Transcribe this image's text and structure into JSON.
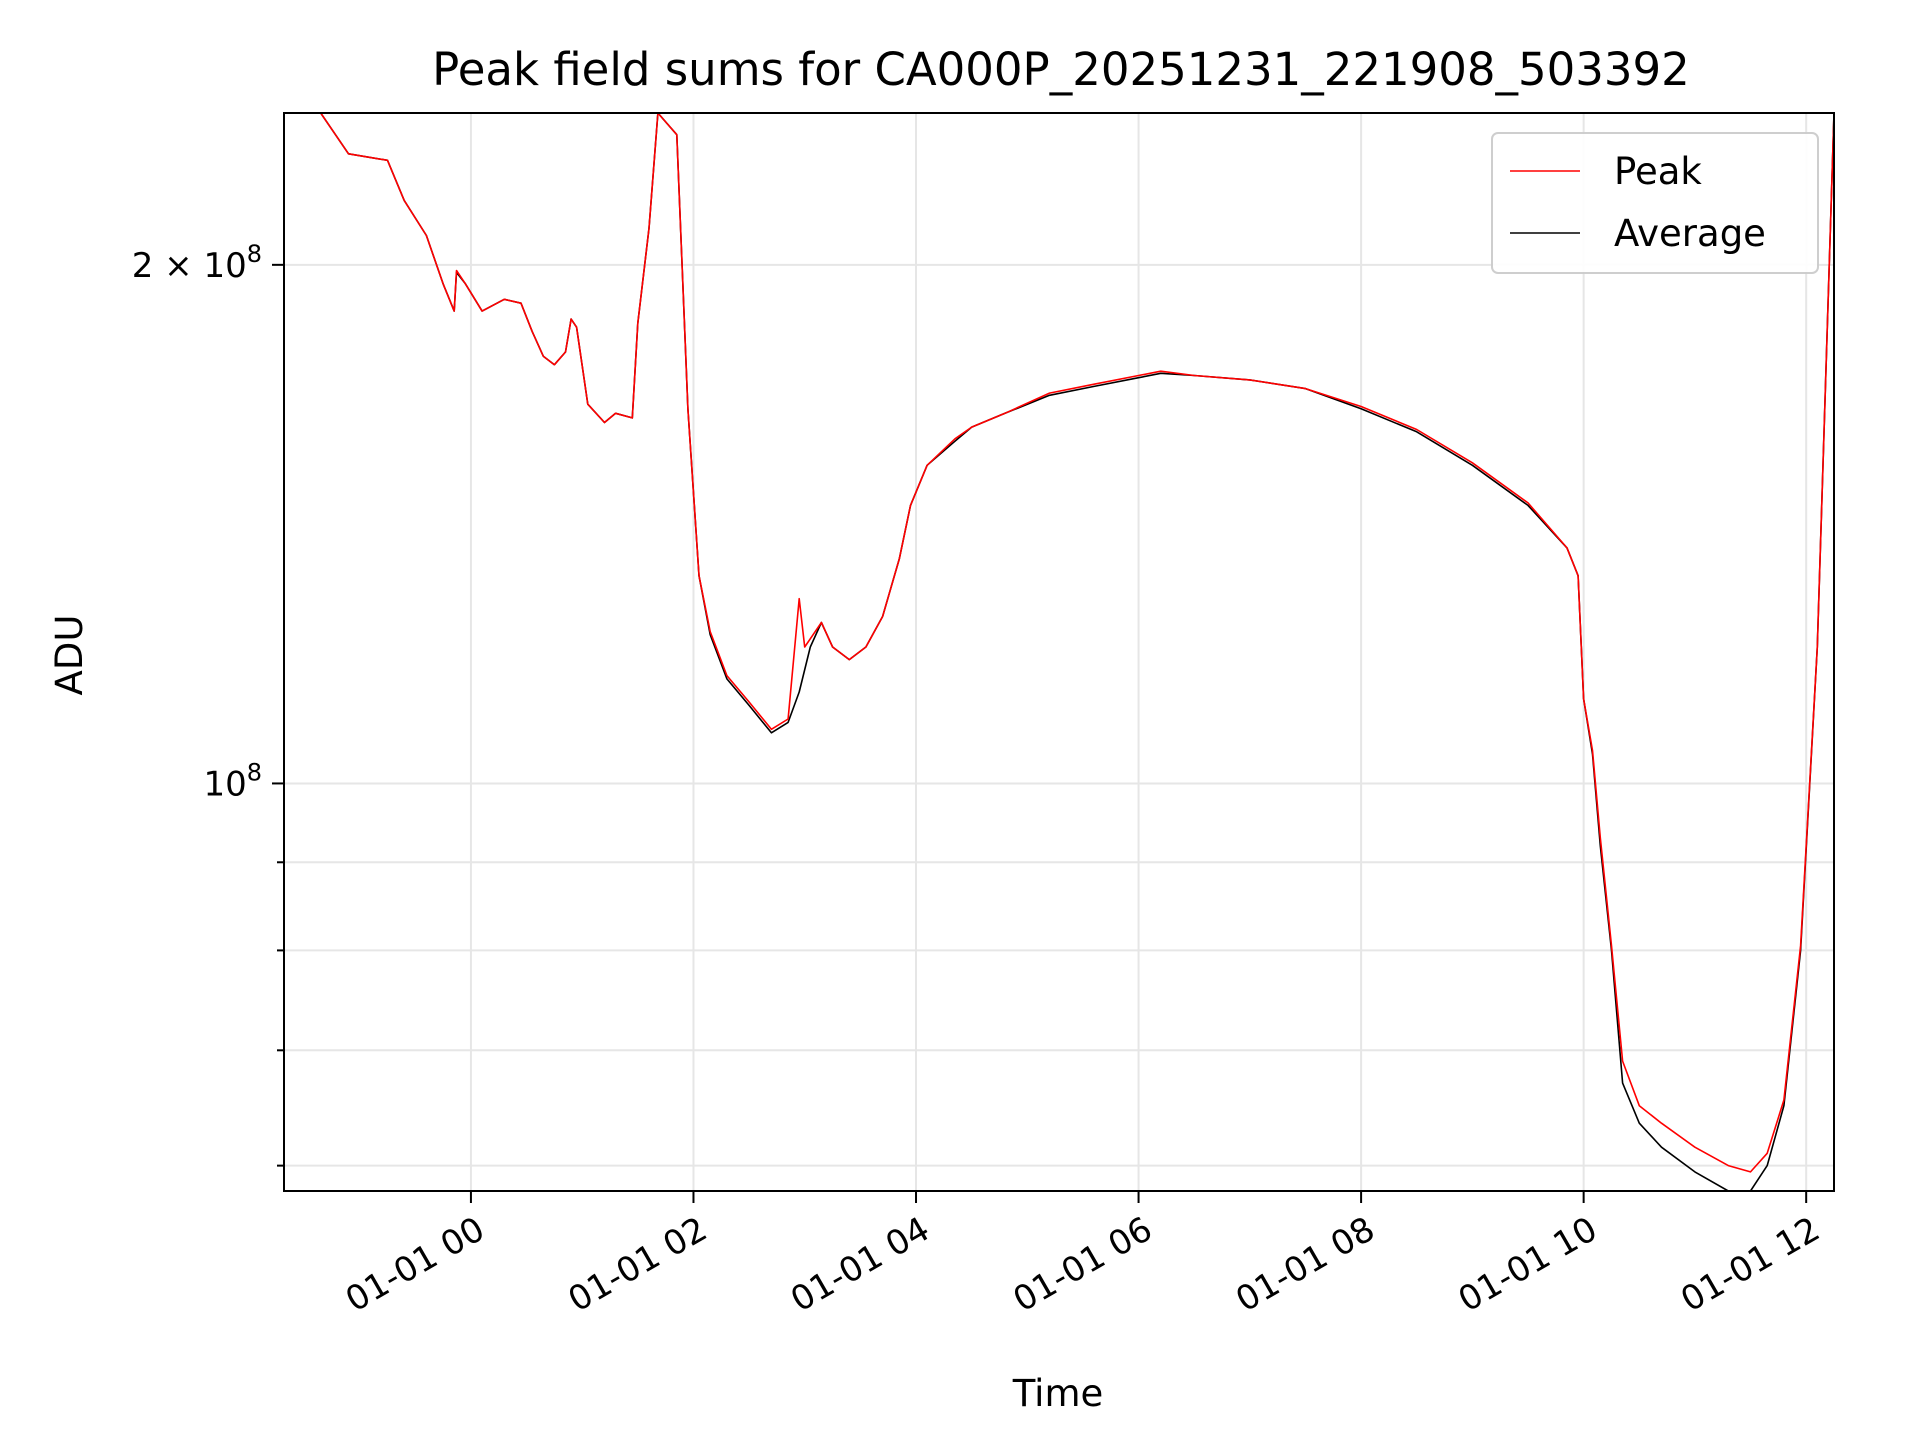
{
  "chart_data": {
    "type": "line",
    "title": "Peak field sums for CA000P_20251231_221908_503392",
    "xlabel": "Time",
    "ylabel": "ADU",
    "x_axis": {
      "unit": "hours since 2026-01-01 00:00",
      "range": [
        -1.68,
        12.25
      ],
      "ticks": [
        {
          "value": 0,
          "label": "01-01 00"
        },
        {
          "value": 2,
          "label": "01-01 02"
        },
        {
          "value": 4,
          "label": "01-01 04"
        },
        {
          "value": 6,
          "label": "01-01 06"
        },
        {
          "value": 8,
          "label": "01-01 08"
        },
        {
          "value": 10,
          "label": "01-01 10"
        },
        {
          "value": 12,
          "label": "01-01 12"
        }
      ]
    },
    "y_axis": {
      "scale": "log",
      "range": [
        58000000,
        245000000
      ],
      "major_ticks": [
        {
          "value": 100000000,
          "base": "10",
          "exp": "8",
          "mantissa": ""
        },
        {
          "value": 200000000,
          "base": "10",
          "exp": "8",
          "mantissa": "2 × "
        }
      ],
      "minor_gridlines": [
        60000000,
        70000000,
        80000000,
        90000000
      ]
    },
    "grid": true,
    "legend": {
      "placement": "upper right",
      "entries": [
        {
          "label": "Peak",
          "color": "#ff0000"
        },
        {
          "label": "Average",
          "color": "#000000"
        }
      ]
    },
    "series": [
      {
        "name": "Average",
        "color": "#000000",
        "points": [
          [
            -1.68,
            245000000
          ],
          [
            -1.35,
            245000000
          ],
          [
            -1.1,
            232000000
          ],
          [
            -0.75,
            230000000
          ],
          [
            -0.6,
            218000000
          ],
          [
            -0.4,
            208000000
          ],
          [
            -0.25,
            195000000
          ],
          [
            -0.15,
            188000000
          ],
          [
            -0.13,
            198000000
          ],
          [
            -0.05,
            195000000
          ],
          [
            0.1,
            188000000
          ],
          [
            0.3,
            191000000
          ],
          [
            0.45,
            190000000
          ],
          [
            0.55,
            183000000
          ],
          [
            0.65,
            177000000
          ],
          [
            0.75,
            175000000
          ],
          [
            0.85,
            178000000
          ],
          [
            0.9,
            186000000
          ],
          [
            0.95,
            184000000
          ],
          [
            1.05,
            166000000
          ],
          [
            1.2,
            162000000
          ],
          [
            1.3,
            164000000
          ],
          [
            1.45,
            163000000
          ],
          [
            1.5,
            185000000
          ],
          [
            1.6,
            210000000
          ],
          [
            1.68,
            245000000
          ],
          [
            1.85,
            238000000
          ],
          [
            1.95,
            165000000
          ],
          [
            2.05,
            132000000
          ],
          [
            2.15,
            122000000
          ],
          [
            2.3,
            115000000
          ],
          [
            2.5,
            111000000
          ],
          [
            2.7,
            107000000
          ],
          [
            2.85,
            108500000
          ],
          [
            2.95,
            113000000
          ],
          [
            3.05,
            120000000
          ],
          [
            3.15,
            124000000
          ],
          [
            3.25,
            120000000
          ],
          [
            3.4,
            118000000
          ],
          [
            3.55,
            120000000
          ],
          [
            3.7,
            125000000
          ],
          [
            3.85,
            135000000
          ],
          [
            3.95,
            145000000
          ],
          [
            4.1,
            153000000
          ],
          [
            4.35,
            158000000
          ],
          [
            4.5,
            161000000
          ],
          [
            4.8,
            164000000
          ],
          [
            5.2,
            168000000
          ],
          [
            5.6,
            170000000
          ],
          [
            6.0,
            172000000
          ],
          [
            6.2,
            173000000
          ],
          [
            6.5,
            172500000
          ],
          [
            7.0,
            171500000
          ],
          [
            7.5,
            169500000
          ],
          [
            8.0,
            165000000
          ],
          [
            8.5,
            160000000
          ],
          [
            9.0,
            153000000
          ],
          [
            9.5,
            145000000
          ],
          [
            9.85,
            137000000
          ],
          [
            9.95,
            132000000
          ],
          [
            10.0,
            112000000
          ],
          [
            10.08,
            104000000
          ],
          [
            10.15,
            92000000
          ],
          [
            10.25,
            80000000
          ],
          [
            10.35,
            67000000
          ],
          [
            10.5,
            63500000
          ],
          [
            10.7,
            61500000
          ],
          [
            11.0,
            59500000
          ],
          [
            11.3,
            58000000
          ],
          [
            11.5,
            58000000
          ],
          [
            11.65,
            60000000
          ],
          [
            11.8,
            65000000
          ],
          [
            11.95,
            80000000
          ],
          [
            12.1,
            120000000
          ],
          [
            12.25,
            245000000
          ]
        ]
      },
      {
        "name": "Peak",
        "color": "#ff0000",
        "points": [
          [
            -1.68,
            245000000
          ],
          [
            -1.35,
            245000000
          ],
          [
            -1.1,
            232000000
          ],
          [
            -0.75,
            230000000
          ],
          [
            -0.6,
            218000000
          ],
          [
            -0.4,
            208000000
          ],
          [
            -0.25,
            195000000
          ],
          [
            -0.15,
            188000000
          ],
          [
            -0.13,
            198500000
          ],
          [
            -0.05,
            195000000
          ],
          [
            0.1,
            188000000
          ],
          [
            0.3,
            191000000
          ],
          [
            0.45,
            190000000
          ],
          [
            0.55,
            183000000
          ],
          [
            0.65,
            177000000
          ],
          [
            0.75,
            175000000
          ],
          [
            0.85,
            178000000
          ],
          [
            0.9,
            186000000
          ],
          [
            0.95,
            184000000
          ],
          [
            1.05,
            166000000
          ],
          [
            1.2,
            162000000
          ],
          [
            1.3,
            164000000
          ],
          [
            1.45,
            163000000
          ],
          [
            1.5,
            185000000
          ],
          [
            1.6,
            210000000
          ],
          [
            1.68,
            245000000
          ],
          [
            1.85,
            238000000
          ],
          [
            1.95,
            165000000
          ],
          [
            2.05,
            132000000
          ],
          [
            2.15,
            122500000
          ],
          [
            2.3,
            115500000
          ],
          [
            2.5,
            111500000
          ],
          [
            2.7,
            107500000
          ],
          [
            2.85,
            109000000
          ],
          [
            2.95,
            128000000
          ],
          [
            3.0,
            120000000
          ],
          [
            3.15,
            124000000
          ],
          [
            3.25,
            120000000
          ],
          [
            3.4,
            118000000
          ],
          [
            3.55,
            120000000
          ],
          [
            3.7,
            125000000
          ],
          [
            3.85,
            135000000
          ],
          [
            3.95,
            145000000
          ],
          [
            4.1,
            153000000
          ],
          [
            4.35,
            158500000
          ],
          [
            4.5,
            161000000
          ],
          [
            4.8,
            164000000
          ],
          [
            5.2,
            168500000
          ],
          [
            5.6,
            170500000
          ],
          [
            6.0,
            172500000
          ],
          [
            6.2,
            173500000
          ],
          [
            6.5,
            172500000
          ],
          [
            7.0,
            171500000
          ],
          [
            7.5,
            169500000
          ],
          [
            8.0,
            165500000
          ],
          [
            8.5,
            160500000
          ],
          [
            9.0,
            153500000
          ],
          [
            9.5,
            145500000
          ],
          [
            9.85,
            137000000
          ],
          [
            9.95,
            132000000
          ],
          [
            10.0,
            112000000
          ],
          [
            10.08,
            104500000
          ],
          [
            10.15,
            93000000
          ],
          [
            10.25,
            80500000
          ],
          [
            10.35,
            69000000
          ],
          [
            10.5,
            65000000
          ],
          [
            10.7,
            63500000
          ],
          [
            11.0,
            61500000
          ],
          [
            11.3,
            60000000
          ],
          [
            11.5,
            59500000
          ],
          [
            11.65,
            61000000
          ],
          [
            11.8,
            65500000
          ],
          [
            11.95,
            80500000
          ],
          [
            12.1,
            120000000
          ],
          [
            12.25,
            245000000
          ]
        ]
      }
    ]
  }
}
